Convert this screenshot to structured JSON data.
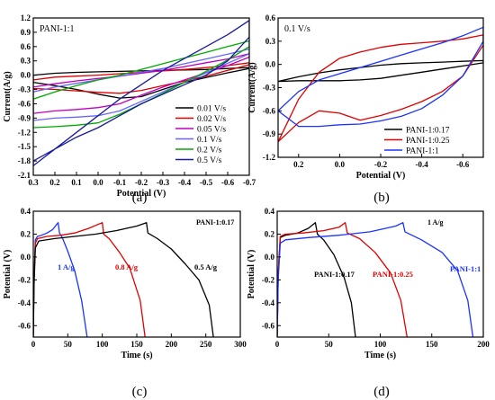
{
  "figure": {
    "panel_letters": [
      "(a)",
      "(b)",
      "(c)",
      "(d)"
    ]
  },
  "chart_data": [
    {
      "panel": "(a)",
      "type": "line",
      "title": "",
      "annotation": "PANI-1:1",
      "xlabel": "Potential (V)",
      "ylabel": "Current(A/g)",
      "xlim": [
        0.3,
        -0.7
      ],
      "ylim": [
        -2.1,
        1.2
      ],
      "xticks": [
        0.3,
        0.2,
        0.1,
        0.0,
        -0.1,
        -0.2,
        -0.3,
        -0.4,
        -0.5,
        -0.6,
        -0.7
      ],
      "xtick_labels": [
        "0.3",
        "0.2",
        "0.1",
        "0.0",
        "-0.1",
        "-0.2",
        "-0.3",
        "-0.4",
        "-0.5",
        "-0.6",
        "-0.7"
      ],
      "yticks": [
        1.2,
        0.9,
        0.6,
        0.3,
        0.0,
        -0.3,
        -0.6,
        -0.9,
        -1.2,
        -1.5,
        -1.8,
        -2.1
      ],
      "ytick_labels": [
        "1.2",
        "0.9",
        "0.6",
        "0.3",
        "0.0",
        "-0.3",
        "-0.6",
        "-0.9",
        "-1.2",
        "-1.5",
        "-1.8",
        "-2.1"
      ],
      "legend_position": "bottom-right",
      "series": [
        {
          "name": "0.01 V/s",
          "color": "#000000",
          "x": [
            0.3,
            0.2,
            0.1,
            0.0,
            -0.1,
            -0.2,
            -0.3,
            -0.4,
            -0.5,
            -0.6,
            -0.7,
            -0.7,
            -0.6,
            -0.5,
            -0.4,
            -0.3,
            -0.2,
            -0.1,
            0.0,
            0.1,
            0.2,
            0.3,
            0.3
          ],
          "y": [
            0.0,
            0.04,
            0.06,
            0.07,
            0.08,
            0.09,
            0.1,
            0.11,
            0.12,
            0.14,
            0.16,
            0.14,
            0.05,
            -0.05,
            -0.15,
            -0.3,
            -0.45,
            -0.48,
            -0.4,
            -0.3,
            -0.22,
            -0.15,
            0.0
          ]
        },
        {
          "name": "0.02 V/s",
          "color": "#e00000",
          "x": [
            0.3,
            0.2,
            0.1,
            0.0,
            -0.1,
            -0.2,
            -0.3,
            -0.4,
            -0.5,
            -0.6,
            -0.7,
            -0.7,
            -0.6,
            -0.5,
            -0.4,
            -0.3,
            -0.2,
            -0.1,
            0.0,
            0.1,
            0.2,
            0.3,
            0.3
          ],
          "y": [
            -0.1,
            -0.04,
            -0.02,
            0.0,
            0.03,
            0.06,
            0.09,
            0.12,
            0.16,
            0.2,
            0.26,
            0.22,
            0.1,
            -0.02,
            -0.12,
            -0.22,
            -0.32,
            -0.38,
            -0.36,
            -0.33,
            -0.3,
            -0.28,
            -0.1
          ]
        },
        {
          "name": "0.05 V/s",
          "color": "#c000c0",
          "x": [
            0.3,
            0.2,
            0.1,
            0.0,
            -0.1,
            -0.2,
            -0.3,
            -0.4,
            -0.5,
            -0.6,
            -0.7,
            -0.7,
            -0.6,
            -0.5,
            -0.4,
            -0.3,
            -0.2,
            -0.1,
            0.0,
            0.1,
            0.2,
            0.3,
            0.3
          ],
          "y": [
            -0.25,
            -0.18,
            -0.12,
            -0.07,
            -0.02,
            0.04,
            0.1,
            0.18,
            0.26,
            0.34,
            0.45,
            0.38,
            0.2,
            0.05,
            -0.1,
            -0.25,
            -0.42,
            -0.6,
            -0.68,
            -0.72,
            -0.75,
            -0.8,
            -0.25
          ]
        },
        {
          "name": "0.1 V/s",
          "color": "#6666ff",
          "x": [
            0.3,
            0.2,
            0.1,
            0.0,
            -0.1,
            -0.2,
            -0.3,
            -0.4,
            -0.5,
            -0.6,
            -0.7,
            -0.7,
            -0.6,
            -0.5,
            -0.4,
            -0.3,
            -0.2,
            -0.1,
            0.0,
            0.1,
            0.2,
            0.3,
            0.3
          ],
          "y": [
            -0.35,
            -0.25,
            -0.17,
            -0.1,
            -0.02,
            0.06,
            0.14,
            0.24,
            0.34,
            0.44,
            0.55,
            0.45,
            0.25,
            0.05,
            -0.15,
            -0.35,
            -0.55,
            -0.75,
            -0.85,
            -0.88,
            -0.9,
            -0.95,
            -0.35
          ]
        },
        {
          "name": "0.2 V/s",
          "color": "#00aa00",
          "x": [
            0.3,
            0.2,
            0.1,
            0.0,
            -0.1,
            -0.2,
            -0.3,
            -0.4,
            -0.5,
            -0.6,
            -0.7,
            -0.7,
            -0.6,
            -0.5,
            -0.4,
            -0.3,
            -0.2,
            -0.1,
            0.0,
            0.1,
            0.2,
            0.3,
            0.3
          ],
          "y": [
            -0.5,
            -0.35,
            -0.22,
            -0.1,
            0.0,
            0.12,
            0.24,
            0.36,
            0.48,
            0.6,
            0.72,
            0.6,
            0.32,
            0.08,
            -0.15,
            -0.38,
            -0.6,
            -0.82,
            -1.0,
            -1.05,
            -1.08,
            -1.1,
            -0.5
          ]
        },
        {
          "name": "0.5 V/s",
          "color": "#1a1aa0",
          "x": [
            0.3,
            0.2,
            0.1,
            0.0,
            -0.1,
            -0.2,
            -0.3,
            -0.4,
            -0.5,
            -0.6,
            -0.7,
            -0.7,
            -0.6,
            -0.5,
            -0.4,
            -0.3,
            -0.2,
            -0.1,
            0.0,
            0.1,
            0.2,
            0.3,
            0.3
          ],
          "y": [
            -1.9,
            -1.55,
            -1.2,
            -0.85,
            -0.5,
            -0.2,
            0.1,
            0.35,
            0.6,
            0.85,
            1.15,
            0.8,
            0.3,
            0.0,
            -0.2,
            -0.4,
            -0.6,
            -0.85,
            -1.1,
            -1.3,
            -1.55,
            -1.8,
            -1.9
          ]
        }
      ]
    },
    {
      "panel": "(b)",
      "type": "line",
      "title": "",
      "annotation": "0.1 V/s",
      "xlabel": "Potential (V)",
      "ylabel": "Current(A/g)",
      "xlim": [
        0.3,
        -0.7
      ],
      "ylim": [
        -1.2,
        0.6
      ],
      "xticks": [
        0.2,
        0.0,
        -0.2,
        -0.4,
        -0.6
      ],
      "xtick_labels": [
        "0.2",
        "0.0",
        "-0.2",
        "-0.4",
        "-0.6"
      ],
      "yticks": [
        0.6,
        0.3,
        0.0,
        -0.3,
        -0.6,
        -0.9,
        -1.2
      ],
      "ytick_labels": [
        "0.6",
        "0.3",
        "0.0",
        "-0.3",
        "-0.6",
        "-0.9",
        "-1.2"
      ],
      "legend_position": "bottom-right",
      "series": [
        {
          "name": "PANI-1:0.17",
          "color": "#000000",
          "x": [
            0.3,
            0.2,
            0.1,
            0.0,
            -0.1,
            -0.2,
            -0.3,
            -0.4,
            -0.5,
            -0.6,
            -0.7,
            -0.7,
            -0.6,
            -0.5,
            -0.4,
            -0.3,
            -0.2,
            -0.1,
            0.0,
            0.1,
            0.2,
            0.3
          ],
          "y": [
            -0.22,
            -0.16,
            -0.11,
            -0.07,
            -0.04,
            -0.01,
            0.01,
            0.02,
            0.03,
            0.04,
            0.05,
            0.02,
            -0.02,
            -0.06,
            -0.1,
            -0.14,
            -0.18,
            -0.2,
            -0.21,
            -0.21,
            -0.21,
            -0.22
          ]
        },
        {
          "name": "PANI-1:0.25",
          "color": "#e00000",
          "x": [
            0.3,
            0.2,
            0.1,
            0.0,
            -0.1,
            -0.2,
            -0.3,
            -0.4,
            -0.5,
            -0.6,
            -0.7,
            -0.7,
            -0.6,
            -0.5,
            -0.4,
            -0.3,
            -0.2,
            -0.1,
            0.0,
            0.1,
            0.2,
            0.3
          ],
          "y": [
            -1.0,
            -0.45,
            -0.1,
            0.08,
            0.16,
            0.22,
            0.26,
            0.28,
            0.3,
            0.33,
            0.38,
            0.25,
            -0.15,
            -0.35,
            -0.48,
            -0.58,
            -0.66,
            -0.72,
            -0.63,
            -0.6,
            -0.75,
            -1.0
          ]
        },
        {
          "name": "PANI-1:1",
          "color": "#1a33ff",
          "x": [
            0.3,
            0.2,
            0.1,
            0.0,
            -0.1,
            -0.2,
            -0.3,
            -0.4,
            -0.5,
            -0.6,
            -0.7,
            -0.7,
            -0.6,
            -0.5,
            -0.4,
            -0.3,
            -0.2,
            -0.1,
            0.0,
            0.1,
            0.2,
            0.3
          ],
          "y": [
            -0.6,
            -0.35,
            -0.2,
            -0.12,
            -0.04,
            0.04,
            0.12,
            0.2,
            0.28,
            0.37,
            0.48,
            0.3,
            -0.15,
            -0.4,
            -0.57,
            -0.67,
            -0.73,
            -0.77,
            -0.78,
            -0.8,
            -0.8,
            -0.6
          ]
        }
      ]
    },
    {
      "panel": "(c)",
      "type": "line",
      "title": "",
      "annotation": "PANI-1:0.17",
      "xlabel": "Time (s)",
      "ylabel": "Potential (V)",
      "xlim": [
        0,
        300
      ],
      "ylim": [
        -0.7,
        0.4
      ],
      "xticks": [
        0,
        50,
        100,
        150,
        200,
        250,
        300
      ],
      "xtick_labels": [
        "0",
        "50",
        "100",
        "150",
        "200",
        "250",
        "300"
      ],
      "yticks": [
        0.4,
        0.2,
        0.0,
        -0.2,
        -0.4,
        -0.6
      ],
      "ytick_labels": [
        "0.4",
        "0.2",
        "0.0",
        "-0.2",
        "-0.4",
        "-0.6"
      ],
      "series": [
        {
          "name": "1 A/g",
          "color": "#1a33ff",
          "label": "1 A/g",
          "x": [
            0,
            1,
            3,
            6,
            12,
            20,
            28,
            36,
            38,
            42,
            50,
            60,
            70,
            78
          ],
          "y": [
            -0.7,
            -0.2,
            0.15,
            0.18,
            0.19,
            0.21,
            0.24,
            0.3,
            0.21,
            0.17,
            0.05,
            -0.12,
            -0.38,
            -0.7
          ]
        },
        {
          "name": "0.8 A/g",
          "color": "#e00000",
          "label": "0.8 A/g",
          "x": [
            0,
            1,
            3,
            6,
            20,
            40,
            60,
            80,
            100,
            102,
            110,
            125,
            140,
            155,
            162
          ],
          "y": [
            -0.7,
            -0.2,
            0.12,
            0.16,
            0.18,
            0.19,
            0.21,
            0.25,
            0.3,
            0.2,
            0.16,
            0.04,
            -0.1,
            -0.38,
            -0.7
          ]
        },
        {
          "name": "0.5 A/g",
          "color": "#000000",
          "label": "0.5 A/g",
          "x": [
            0,
            1,
            3,
            8,
            30,
            60,
            90,
            120,
            150,
            164,
            166,
            180,
            200,
            220,
            240,
            255,
            261
          ],
          "y": [
            -0.7,
            -0.25,
            0.08,
            0.14,
            0.16,
            0.18,
            0.2,
            0.23,
            0.27,
            0.3,
            0.21,
            0.16,
            0.07,
            -0.06,
            -0.2,
            -0.42,
            -0.7
          ]
        }
      ]
    },
    {
      "panel": "(d)",
      "type": "line",
      "title": "",
      "annotation": "1 A/g",
      "xlabel": "Time (s)",
      "ylabel": "Potential (V)",
      "xlim": [
        0,
        200
      ],
      "ylim": [
        -0.7,
        0.4
      ],
      "xticks": [
        0,
        50,
        100,
        150,
        200
      ],
      "xtick_labels": [
        "0",
        "50",
        "100",
        "150",
        "200"
      ],
      "yticks": [
        0.4,
        0.2,
        0.0,
        -0.2,
        -0.4,
        -0.6
      ],
      "ytick_labels": [
        "0.4",
        "0.2",
        "0.0",
        "-0.2",
        "-0.4",
        "-0.6"
      ],
      "series": [
        {
          "name": "PANI-1:0.17",
          "color": "#000000",
          "label": "PANI-1:0.17",
          "x": [
            0,
            1,
            3,
            8,
            20,
            30,
            37,
            39,
            45,
            55,
            65,
            72,
            76
          ],
          "y": [
            -0.7,
            -0.15,
            0.17,
            0.19,
            0.21,
            0.25,
            0.3,
            0.2,
            0.15,
            0.02,
            -0.18,
            -0.4,
            -0.7
          ]
        },
        {
          "name": "PANI-1:0.25",
          "color": "#e00000",
          "label": "PANI-1:0.25",
          "x": [
            0,
            1,
            3,
            8,
            25,
            45,
            60,
            66,
            68,
            80,
            95,
            110,
            120,
            126
          ],
          "y": [
            -0.7,
            -0.15,
            0.18,
            0.2,
            0.21,
            0.23,
            0.26,
            0.3,
            0.21,
            0.16,
            0.04,
            -0.14,
            -0.38,
            -0.7
          ]
        },
        {
          "name": "PANI-1:1",
          "color": "#1a33ff",
          "label": "PANI-1:1",
          "x": [
            0,
            1,
            3,
            8,
            30,
            60,
            90,
            115,
            122,
            124,
            140,
            160,
            175,
            185,
            190
          ],
          "y": [
            -0.7,
            -0.2,
            0.12,
            0.15,
            0.17,
            0.19,
            0.22,
            0.27,
            0.3,
            0.22,
            0.15,
            0.04,
            -0.12,
            -0.38,
            -0.7
          ]
        }
      ]
    }
  ]
}
